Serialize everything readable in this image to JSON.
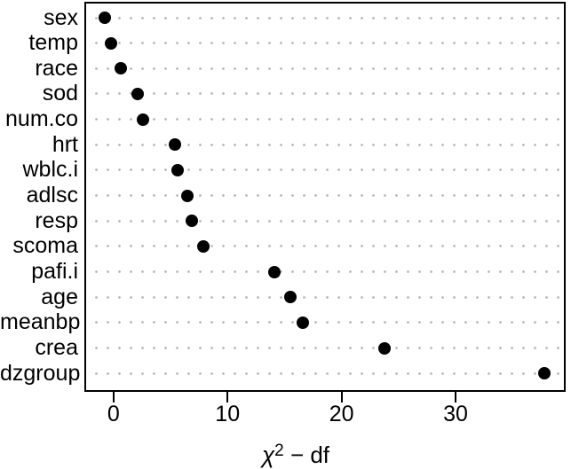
{
  "figure": {
    "background_color": "#ffffff",
    "dot_color": "#000000",
    "grid_dot_color": "#b4b4b4",
    "border_color": "#000000"
  },
  "chart_data": {
    "type": "scatter",
    "variant": "cleveland-dot-chart",
    "title": "",
    "xlabel": "χ² − df",
    "xlabel_parts": {
      "base": "χ",
      "exponent": "2",
      "suffix": " − df"
    },
    "categories": [
      "sex",
      "temp",
      "race",
      "sod",
      "num.co",
      "hrt",
      "wblc.i",
      "adlsc",
      "resp",
      "scoma",
      "pafi.i",
      "age",
      "meanbp",
      "crea",
      "dzgroup"
    ],
    "values": [
      -0.8,
      -0.2,
      0.6,
      2.1,
      2.6,
      5.4,
      5.6,
      6.5,
      6.9,
      7.9,
      14.1,
      15.5,
      16.6,
      23.8,
      37.8
    ],
    "xlim": [
      -2.4,
      39.5
    ],
    "xticks": [
      0,
      10,
      20,
      30
    ],
    "xtick_labels": [
      "0",
      "10",
      "20",
      "30"
    ],
    "grid": "dotted-horizontal",
    "legend": "none"
  }
}
